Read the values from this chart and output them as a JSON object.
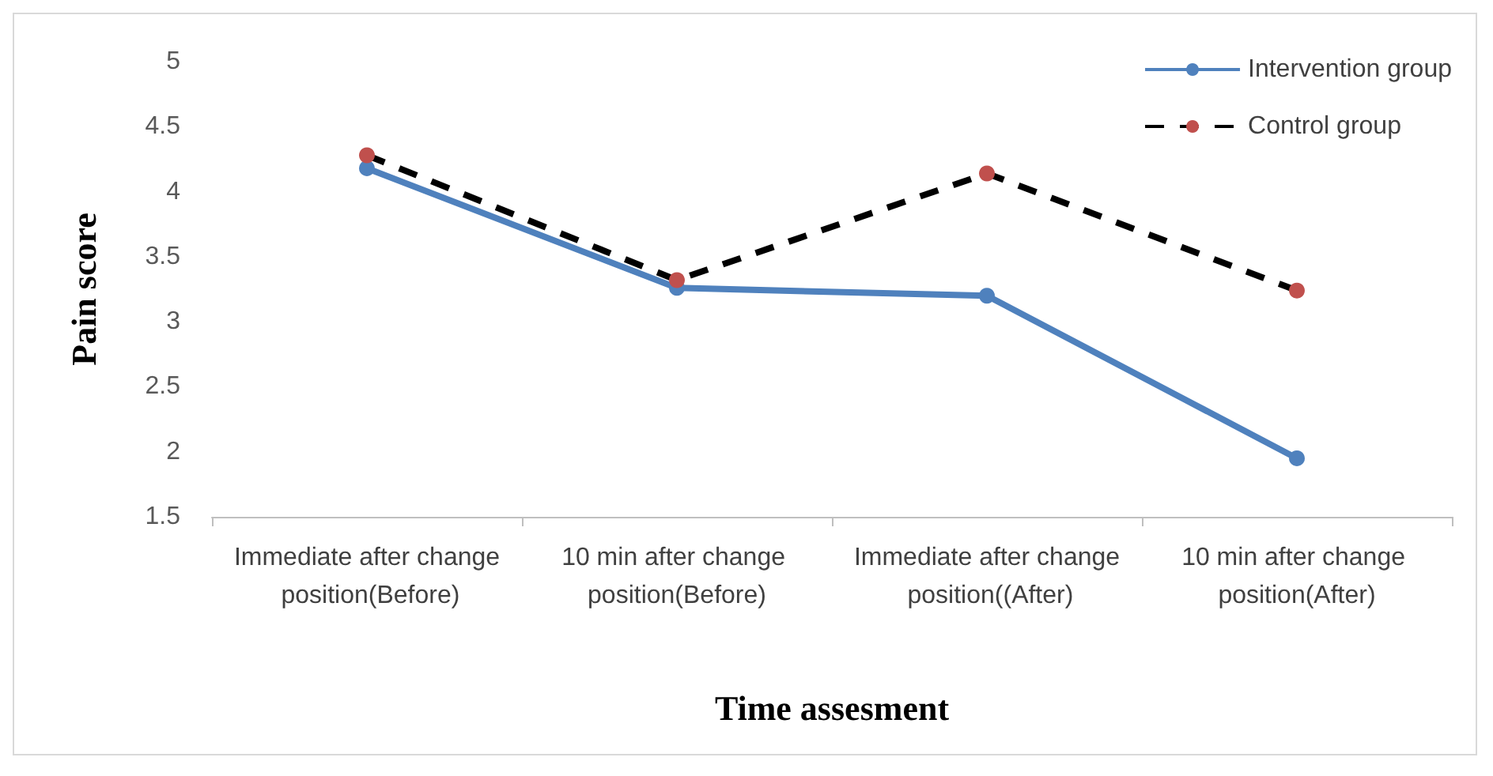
{
  "chart_data": {
    "type": "line",
    "xlabel": "Time assesment",
    "ylabel": "Pain score",
    "categories": [
      "Immediate after change position(Before)",
      "10 min after change position(Before)",
      "Immediate after change position((After)",
      "10 min after change position(After)"
    ],
    "series": [
      {
        "name": "Intervention group",
        "color": "#4f81bd",
        "values": [
          4.18,
          3.26,
          3.2,
          1.95
        ],
        "line_style": "solid"
      },
      {
        "name": "Control group",
        "color": "#000000",
        "colors": [
          "#c0504d",
          "#c0504d",
          "#c0504d",
          "#c0504d"
        ],
        "values": [
          4.28,
          3.32,
          4.14,
          3.24
        ],
        "line_style": "dashed"
      }
    ],
    "ylim": [
      1.5,
      5
    ],
    "yticks": [
      1.5,
      2,
      2.5,
      3,
      3.5,
      4,
      4.5,
      5
    ],
    "grid": false,
    "legend": "top right",
    "marker": "circle"
  }
}
